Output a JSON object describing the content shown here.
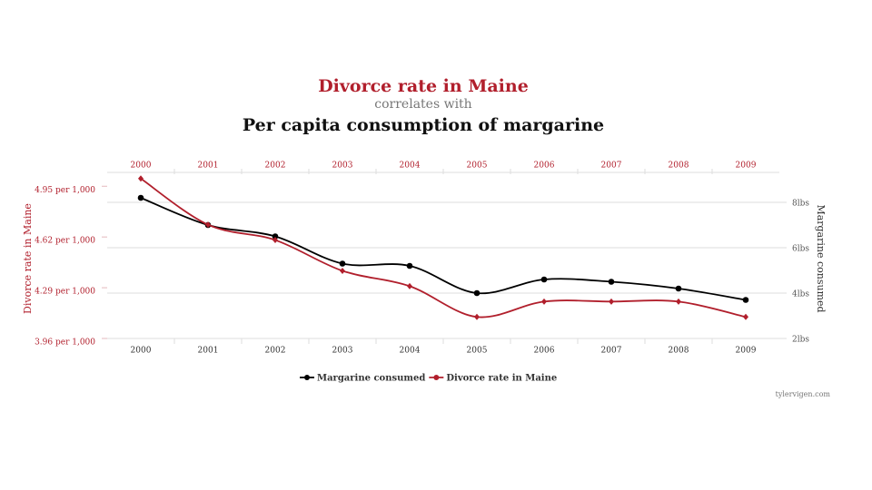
{
  "chart_data": {
    "type": "line",
    "title": "Divorce rate in Maine",
    "subtitle": "correlates with",
    "title_2": "Per capita consumption of margarine",
    "categories": [
      "2000",
      "2001",
      "2002",
      "2003",
      "2004",
      "2005",
      "2006",
      "2007",
      "2008",
      "2009"
    ],
    "series": [
      {
        "name": "Margarine consumed",
        "color": "#000000",
        "axis": "y2",
        "values": [
          8.2,
          7,
          6.5,
          5.3,
          5.2,
          4,
          4.6,
          4.5,
          4.2,
          3.7
        ]
      },
      {
        "name": "Divorce rate in Maine",
        "color": "#b11f2c",
        "axis": "y",
        "values": [
          5.0,
          4.7,
          4.6,
          4.4,
          4.3,
          4.1,
          4.2,
          4.2,
          4.2,
          4.1
        ]
      }
    ],
    "y_label": "Divorce rate in Maine",
    "y2_label": "Margarine consumed",
    "ylim": [
      3.96,
      5.04
    ],
    "yticks": [
      {
        "value": 3.96,
        "label": "3.96 per 1,000"
      },
      {
        "value": 4.29,
        "label": "4.29 per 1,000"
      },
      {
        "value": 4.62,
        "label": "4.62 per 1,000"
      },
      {
        "value": 4.95,
        "label": "4.95 per 1,000"
      }
    ],
    "y2lim": [
      2,
      9.32
    ],
    "y2ticks": [
      {
        "value": 2,
        "label": "2lbs"
      },
      {
        "value": 4,
        "label": "4lbs"
      },
      {
        "value": 6,
        "label": "6lbs"
      },
      {
        "value": 8,
        "label": "8lbs"
      }
    ],
    "grid": true,
    "source": "tylervigen.com"
  }
}
